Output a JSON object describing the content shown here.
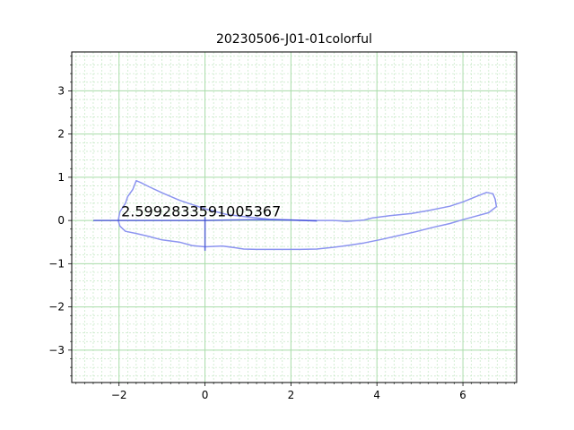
{
  "chart_data": {
    "type": "line",
    "title": "20230506-J01-01colorful",
    "xlabel": "",
    "ylabel": "",
    "xlim": [
      -3.1,
      7.25
    ],
    "ylim": [
      -3.75,
      3.9
    ],
    "xticks": [
      -2,
      0,
      2,
      4,
      6
    ],
    "yticks": [
      -3,
      -2,
      -1,
      0,
      1,
      2,
      3
    ],
    "x_tick_labels": [
      "−2",
      "0",
      "2",
      "4",
      "6"
    ],
    "y_tick_labels": [
      "−3",
      "−2",
      "−1",
      "0",
      "1",
      "2",
      "3"
    ],
    "minor_step": 0.2,
    "grid": true,
    "annotation": {
      "text": "2.5992833591005367",
      "x": -1.95,
      "y": 0.1
    },
    "colors": {
      "loop": "#8c94f0",
      "axis_line": "#3a46d8",
      "major_grid": "#a8dca8",
      "minor_grid": "#b8e2b8"
    },
    "series": [
      {
        "type": "closed-curve",
        "points": [
          [
            -1.6,
            0.92
          ],
          [
            -1.5,
            0.88
          ],
          [
            -1.3,
            0.78
          ],
          [
            -1.0,
            0.64
          ],
          [
            -0.6,
            0.47
          ],
          [
            -0.3,
            0.37
          ],
          [
            0.0,
            0.27
          ],
          [
            0.5,
            0.14
          ],
          [
            1.0,
            0.08
          ],
          [
            1.5,
            0.03
          ],
          [
            2.0,
            0.01
          ],
          [
            2.5,
            0.0
          ],
          [
            3.0,
            0.0
          ],
          [
            3.3,
            -0.02
          ],
          [
            3.7,
            0.01
          ],
          [
            3.9,
            0.06
          ],
          [
            4.3,
            0.11
          ],
          [
            4.8,
            0.16
          ],
          [
            5.2,
            0.23
          ],
          [
            5.7,
            0.33
          ],
          [
            6.0,
            0.43
          ],
          [
            6.3,
            0.55
          ],
          [
            6.55,
            0.65
          ],
          [
            6.7,
            0.62
          ],
          [
            6.75,
            0.5
          ],
          [
            6.78,
            0.32
          ],
          [
            6.6,
            0.18
          ],
          [
            6.3,
            0.1
          ],
          [
            6.0,
            0.02
          ],
          [
            5.7,
            -0.07
          ],
          [
            5.3,
            -0.16
          ],
          [
            4.9,
            -0.26
          ],
          [
            4.5,
            -0.35
          ],
          [
            4.1,
            -0.44
          ],
          [
            3.7,
            -0.52
          ],
          [
            3.3,
            -0.58
          ],
          [
            3.0,
            -0.62
          ],
          [
            2.6,
            -0.66
          ],
          [
            2.2,
            -0.67
          ],
          [
            1.7,
            -0.67
          ],
          [
            1.2,
            -0.67
          ],
          [
            0.9,
            -0.66
          ],
          [
            0.7,
            -0.63
          ],
          [
            0.4,
            -0.59
          ],
          [
            0.0,
            -0.61
          ],
          [
            -0.3,
            -0.58
          ],
          [
            -0.6,
            -0.5
          ],
          [
            -1.0,
            -0.45
          ],
          [
            -1.3,
            -0.37
          ],
          [
            -1.6,
            -0.3
          ],
          [
            -1.85,
            -0.25
          ],
          [
            -1.98,
            -0.13
          ],
          [
            -2.02,
            0.0
          ],
          [
            -1.98,
            0.2
          ],
          [
            -1.85,
            0.4
          ],
          [
            -1.8,
            0.55
          ],
          [
            -1.68,
            0.72
          ],
          [
            -1.6,
            0.92
          ]
        ]
      },
      {
        "type": "line",
        "points": [
          [
            -2.6,
            0.0
          ],
          [
            0.0,
            0.0
          ],
          [
            0.5,
            0.01
          ],
          [
            1.2,
            0.02
          ],
          [
            2.0,
            0.01
          ],
          [
            2.6,
            -0.01
          ]
        ]
      },
      {
        "type": "line",
        "points": [
          [
            0.0,
            0.08
          ],
          [
            0.0,
            -0.7
          ]
        ]
      }
    ]
  }
}
